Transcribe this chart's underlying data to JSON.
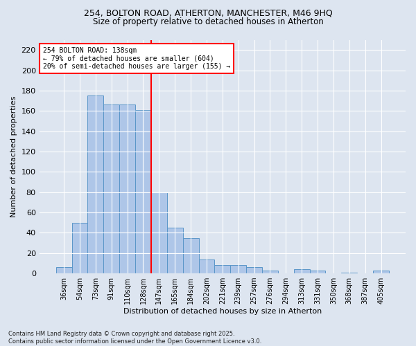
{
  "title_line1": "254, BOLTON ROAD, ATHERTON, MANCHESTER, M46 9HQ",
  "title_line2": "Size of property relative to detached houses in Atherton",
  "xlabel": "Distribution of detached houses by size in Atherton",
  "ylabel": "Number of detached properties",
  "bar_labels": [
    "36sqm",
    "54sqm",
    "73sqm",
    "91sqm",
    "110sqm",
    "128sqm",
    "147sqm",
    "165sqm",
    "184sqm",
    "202sqm",
    "221sqm",
    "239sqm",
    "257sqm",
    "276sqm",
    "294sqm",
    "313sqm",
    "331sqm",
    "350sqm",
    "368sqm",
    "387sqm",
    "405sqm"
  ],
  "bar_values": [
    6,
    50,
    175,
    166,
    166,
    161,
    80,
    45,
    35,
    14,
    8,
    8,
    6,
    3,
    0,
    4,
    3,
    0,
    1,
    0,
    3
  ],
  "bar_color": "#aec6e8",
  "bar_edge_color": "#5a96c8",
  "vline_x": 5.5,
  "vline_color": "red",
  "annotation_title": "254 BOLTON ROAD: 138sqm",
  "annotation_line1": "← 79% of detached houses are smaller (604)",
  "annotation_line2": "20% of semi-detached houses are larger (155) →",
  "annotation_box_color": "white",
  "annotation_box_edge": "red",
  "ylim": [
    0,
    230
  ],
  "yticks": [
    0,
    20,
    40,
    60,
    80,
    100,
    120,
    140,
    160,
    180,
    200,
    220
  ],
  "footnote_line1": "Contains HM Land Registry data © Crown copyright and database right 2025.",
  "footnote_line2": "Contains public sector information licensed under the Open Government Licence v3.0.",
  "background_color": "#dde5f0",
  "plot_bg_color": "#dde5f0"
}
